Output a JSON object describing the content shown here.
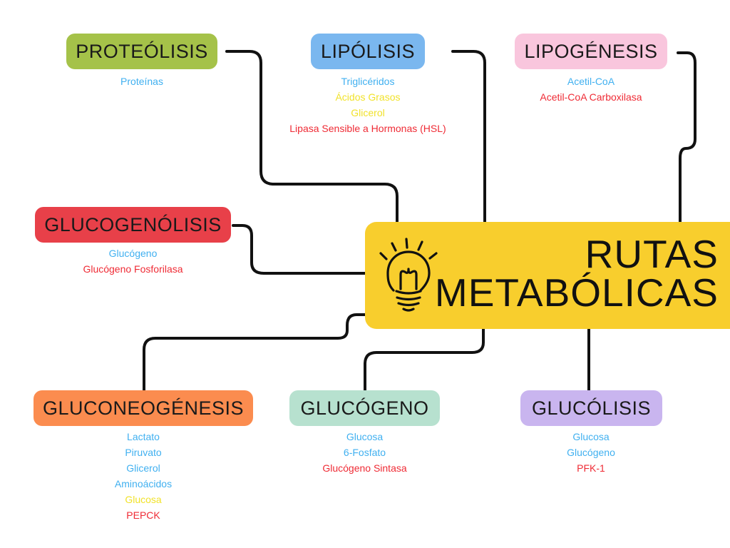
{
  "title": [
    "RUTAS",
    "METABÓLICAS"
  ],
  "icon": "lightbulb-icon",
  "colors": {
    "central": "#f8ce2d",
    "proteolisis": "#a5c249",
    "lipolisis": "#7ab7ef",
    "lipogenesis": "#f9c6dd",
    "glucogenolisis": "#e84049",
    "gluconeogenesis": "#fb8c4f",
    "glucogeno": "#b7e1cf",
    "glucolisis": "#c9b5ef",
    "item_blue": "#40b0f0",
    "item_yellow": "#f1e22a",
    "item_red": "#ef2b35"
  },
  "nodes": {
    "proteolisis": {
      "label": "PROTEÓLISIS",
      "items": [
        {
          "text": "Proteínas",
          "color": "blue"
        }
      ]
    },
    "lipolisis": {
      "label": "LIPÓLISIS",
      "items": [
        {
          "text": "Triglicéridos",
          "color": "blue"
        },
        {
          "text": "Ácidos Grasos",
          "color": "yellow"
        },
        {
          "text": "Glicerol",
          "color": "yellow"
        },
        {
          "text": "Lipasa Sensible a Hormonas (HSL)",
          "color": "red"
        }
      ]
    },
    "lipogenesis": {
      "label": "LIPOGÉNESIS",
      "items": [
        {
          "text": "Acetil-CoA",
          "color": "blue"
        },
        {
          "text": "Acetil-CoA Carboxilasa",
          "color": "red"
        }
      ]
    },
    "glucogenolisis": {
      "label": "GLUCOGENÓLISIS",
      "items": [
        {
          "text": "Glucógeno",
          "color": "blue"
        },
        {
          "text": "Glucógeno Fosforilasa",
          "color": "red"
        }
      ]
    },
    "gluconeogenesis": {
      "label": "GLUCONEOGÉNESIS",
      "items": [
        {
          "text": "Lactato",
          "color": "blue"
        },
        {
          "text": "Piruvato",
          "color": "blue"
        },
        {
          "text": "Glicerol",
          "color": "blue"
        },
        {
          "text": "Aminoácidos",
          "color": "blue"
        },
        {
          "text": "Glucosa",
          "color": "yellow"
        },
        {
          "text": "PEPCK",
          "color": "red"
        }
      ]
    },
    "glucogeno": {
      "label": "GLUCÓGENO",
      "items": [
        {
          "text": "Glucosa",
          "color": "blue"
        },
        {
          "text": "6-Fosfato",
          "color": "blue"
        },
        {
          "text": "Glucógeno Sintasa",
          "color": "red"
        }
      ]
    },
    "glucolisis": {
      "label": "GLUCÓLISIS",
      "items": [
        {
          "text": "Glucosa",
          "color": "blue"
        },
        {
          "text": "Glucógeno",
          "color": "blue"
        },
        {
          "text": "PFK-1",
          "color": "red"
        }
      ]
    }
  }
}
